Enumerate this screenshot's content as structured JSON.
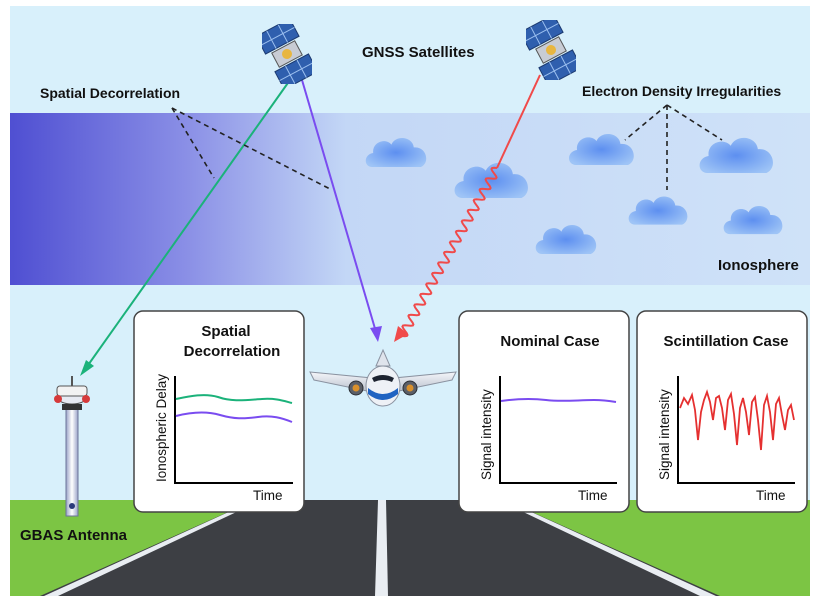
{
  "labels": {
    "satellites": "GNSS Satellites",
    "spatial_decorrelation": "Spatial Decorrelation",
    "electron_density": "Electron Density Irregularities",
    "ionosphere": "Ionosphere",
    "gbas_antenna": "GBAS Antenna"
  },
  "panels": {
    "spatial": {
      "title_line1": "Spatial",
      "title_line2": "Decorrelation",
      "ylabel": "Ionospheric Delay",
      "xlabel": "Time"
    },
    "nominal": {
      "title": "Nominal Case",
      "ylabel": "Signal intensity",
      "xlabel": "Time"
    },
    "scintillation": {
      "title": "Scintillation Case",
      "ylabel": "Signal intensity",
      "xlabel": "Time"
    }
  },
  "colors": {
    "green_path": "#1bb27a",
    "purple_path": "#7a4cf0",
    "red_path": "#f04a4a",
    "sky": "#d8f0fb",
    "ionosphere_dark": "#5a5ad8",
    "ionosphere_light": "#c9dff8",
    "grass": "#7cc544",
    "road": "#3d3f44"
  },
  "icons": [
    "satellite-icon",
    "airplane-icon",
    "antenna-icon",
    "cloud-icon"
  ]
}
